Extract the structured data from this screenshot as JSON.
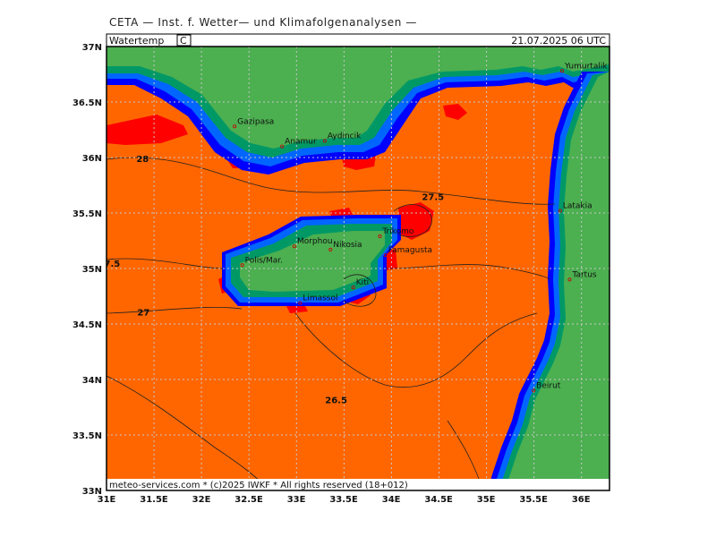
{
  "header": "CETA — Inst. f. Wetter— und Klimafolgenanalysen —",
  "variable_label": "Watertemp",
  "unit_label": "C",
  "datetime": "21.07.2025 06 UTC",
  "footer": "meteo-services.com * (c)2025 IWKF * All rights reserved (18+012)",
  "axes": {
    "lon_ticks": [
      "31E",
      "31.5E",
      "32E",
      "32.5E",
      "33E",
      "33.5E",
      "34E",
      "34.5E",
      "35E",
      "35.5E",
      "36E"
    ],
    "lat_ticks": [
      "37N",
      "36.5N",
      "36N",
      "35.5N",
      "35N",
      "34.5N",
      "34N",
      "33.5N",
      "33N"
    ]
  },
  "cities": [
    {
      "name": "Gazipasa",
      "lon": 32.35,
      "lat": 36.28
    },
    {
      "name": "Anamur",
      "lon": 32.85,
      "lat": 36.1
    },
    {
      "name": "Aydincik",
      "lon": 33.3,
      "lat": 36.15
    },
    {
      "name": "Yumurtalik",
      "lon": 35.8,
      "lat": 36.78
    },
    {
      "name": "Latakia",
      "lon": 35.78,
      "lat": 35.52
    },
    {
      "name": "Tartus",
      "lon": 35.88,
      "lat": 34.9
    },
    {
      "name": "Beirut",
      "lon": 35.5,
      "lat": 33.9
    },
    {
      "name": "Trikomo",
      "lon": 33.88,
      "lat": 35.29
    },
    {
      "name": "Morphou",
      "lon": 32.98,
      "lat": 35.2
    },
    {
      "name": "Nikosia",
      "lon": 33.36,
      "lat": 35.17
    },
    {
      "name": "Famagusta",
      "lon": 33.94,
      "lat": 35.12
    },
    {
      "name": "Polis/Mar.",
      "lon": 32.43,
      "lat": 35.03
    },
    {
      "name": "Kiti",
      "lon": 33.6,
      "lat": 34.83
    },
    {
      "name": "Limassol",
      "lon": 33.04,
      "lat": 34.69
    }
  ],
  "isotherm_labels": [
    {
      "text": "28",
      "lon": 31.38,
      "lat": 35.99
    },
    {
      "text": "27.5",
      "lon": 34.44,
      "lat": 35.65
    },
    {
      "text": "7.5",
      "lon": 31.06,
      "lat": 35.05
    },
    {
      "text": "27",
      "lon": 31.39,
      "lat": 34.61
    },
    {
      "text": "26.5",
      "lon": 33.42,
      "lat": 33.82
    }
  ],
  "colors": {
    "sea_main": "#ff6600",
    "sea_warm": "#ff0000",
    "land": "#4caf50",
    "coast_dark": "#009966",
    "coast_mid": "#0066ff",
    "coast_deep": "#0000ff",
    "grid": "#c8c8c8"
  }
}
